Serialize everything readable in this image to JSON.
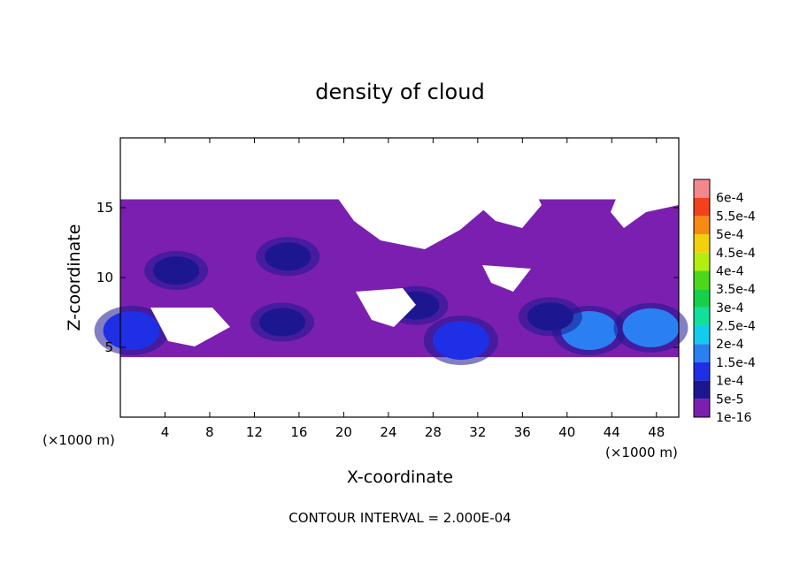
{
  "chart_data": {
    "type": "heatmap",
    "title": "density of cloud",
    "xlabel": "X-coordinate",
    "ylabel": "Z-coordinate",
    "x_unit": "(×1000 m)",
    "y_unit": "(×1000 m)",
    "xlim": [
      0,
      50
    ],
    "ylim": [
      0,
      20
    ],
    "x_ticks": [
      4,
      8,
      12,
      16,
      20,
      24,
      28,
      32,
      36,
      40,
      44,
      48
    ],
    "y_ticks": [
      5,
      10,
      15
    ],
    "contour_interval_text": "CONTOUR INTERVAL = 2.000E-04",
    "colorbar": {
      "labels": [
        "1e-16",
        "5e-5",
        "1e-4",
        "1.5e-4",
        "2e-4",
        "2.5e-4",
        "3e-4",
        "3.5e-4",
        "4e-4",
        "4.5e-4",
        "5e-4",
        "5.5e-4",
        "6e-4"
      ],
      "colors": [
        "#7b1fb0",
        "#1c1790",
        "#1f2fe6",
        "#2a7ff2",
        "#12ccee",
        "#10e09a",
        "#14d04a",
        "#4cd81a",
        "#b2ee10",
        "#f2d00c",
        "#f68a12",
        "#f2421c",
        "#f4878e"
      ]
    },
    "cloud_layer": {
      "z_range": [
        4.3,
        15.6
      ],
      "base_level": "1e-16",
      "hotspots": [
        {
          "x": 1,
          "z": 6.2,
          "level": "1e-4"
        },
        {
          "x": 14.5,
          "z": 6.8,
          "level": "5e-5"
        },
        {
          "x": 30.5,
          "z": 5.5,
          "level": "1e-4"
        },
        {
          "x": 26.5,
          "z": 8.0,
          "level": "5e-5"
        },
        {
          "x": 42,
          "z": 6.2,
          "level": "1.5e-4"
        },
        {
          "x": 47.5,
          "z": 6.4,
          "level": "1.5e-4"
        },
        {
          "x": 38.5,
          "z": 7.2,
          "level": "5e-5"
        },
        {
          "x": 5,
          "z": 10.5,
          "level": "5e-5"
        },
        {
          "x": 15,
          "z": 11.5,
          "level": "5e-5"
        }
      ]
    }
  }
}
